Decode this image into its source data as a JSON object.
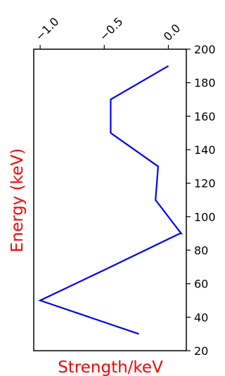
{
  "chart_data": {
    "type": "line",
    "xlabel": "Strength/keV",
    "ylabel": "Energy (keV)",
    "label_color": "#ff0000",
    "line_color": "#0000ff",
    "xlim": [
      -1.05,
      0.14
    ],
    "ylim": [
      20,
      200
    ],
    "x_ticks": [
      -1.0,
      -0.5,
      0.0
    ],
    "x_tick_labels": [
      "−1.0",
      "−0.5",
      "0.0"
    ],
    "y_ticks": [
      20,
      40,
      60,
      80,
      100,
      120,
      140,
      160,
      180,
      200
    ],
    "y_tick_labels": [
      "20",
      "40",
      "60",
      "80",
      "100",
      "120",
      "140",
      "160",
      "180",
      "200"
    ],
    "series": [
      {
        "x": [
          -0.23,
          -1.0,
          -0.45,
          0.09,
          0.1,
          -0.1,
          -0.08,
          -0.45,
          -0.45,
          0.0
        ],
        "y": [
          30,
          50,
          70,
          90,
          90,
          110,
          130,
          150,
          170,
          190
        ]
      }
    ]
  }
}
